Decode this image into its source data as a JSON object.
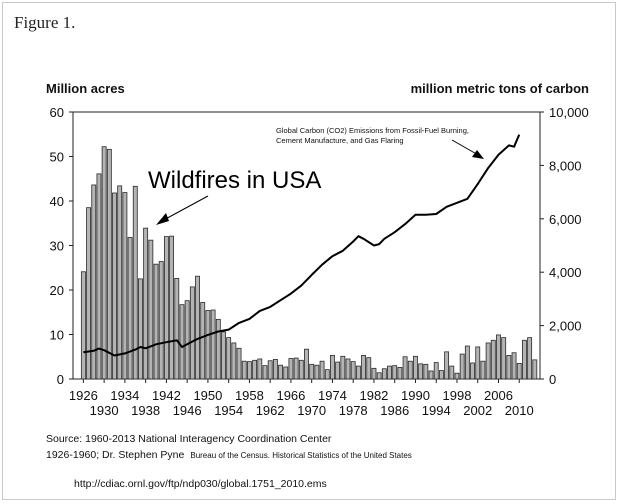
{
  "figure_label": "Figure 1.",
  "chart_data": {
    "type": "bar+line",
    "left_axis": {
      "label": "Million acres",
      "range": [
        0,
        60
      ],
      "ticks": [
        0,
        10,
        20,
        30,
        40,
        50,
        60
      ]
    },
    "right_axis": {
      "label": "million metric tons of carbon",
      "range": [
        0,
        10000
      ],
      "ticks": [
        "0",
        "2,000",
        "4,000",
        "6,000",
        "8,000",
        "10,000"
      ]
    },
    "x_ticks_top": [
      "1926",
      "1934",
      "1942",
      "1950",
      "1958",
      "1966",
      "1974",
      "1982",
      "1990",
      "1998",
      "2006"
    ],
    "x_ticks_bottom": [
      "1930",
      "1938",
      "1946",
      "1954",
      "1962",
      "1970",
      "1978",
      "1986",
      "1994",
      "2002",
      "2010"
    ],
    "bars": {
      "name": "Wildfires in USA",
      "years": [
        1926,
        1927,
        1928,
        1929,
        1930,
        1931,
        1932,
        1933,
        1934,
        1935,
        1936,
        1937,
        1938,
        1939,
        1940,
        1941,
        1942,
        1943,
        1944,
        1945,
        1946,
        1947,
        1948,
        1949,
        1950,
        1951,
        1952,
        1953,
        1954,
        1955,
        1956,
        1957,
        1958,
        1959,
        1960,
        1961,
        1962,
        1963,
        1964,
        1965,
        1966,
        1967,
        1968,
        1969,
        1970,
        1971,
        1972,
        1973,
        1974,
        1975,
        1976,
        1977,
        1978,
        1979,
        1980,
        1981,
        1982,
        1983,
        1984,
        1985,
        1986,
        1987,
        1988,
        1989,
        1990,
        1991,
        1992,
        1993,
        1994,
        1995,
        1996,
        1997,
        1998,
        1999,
        2000,
        2001,
        2002,
        2003,
        2004,
        2005,
        2006,
        2007,
        2008,
        2009,
        2010,
        2011,
        2012,
        2013
      ],
      "values": [
        24.1,
        38.5,
        43.6,
        46.1,
        52.2,
        51.6,
        41.8,
        43.4,
        41.9,
        31.8,
        43.3,
        22.5,
        33.9,
        31.2,
        25.8,
        26.4,
        32.0,
        32.1,
        22.6,
        16.7,
        17.6,
        20.7,
        23.1,
        17.2,
        15.4,
        15.5,
        13.4,
        10.6,
        9.3,
        8.1,
        6.9,
        4.0,
        3.9,
        4.2,
        4.5,
        3.0,
        4.1,
        4.4,
        3.1,
        2.7,
        4.6,
        4.7,
        4.2,
        6.7,
        3.3,
        3.1,
        4.0,
        2.1,
        5.3,
        3.8,
        5.1,
        4.5,
        3.9,
        2.9,
        5.3,
        4.8,
        2.4,
        1.4,
        2.3,
        2.9,
        3.0,
        2.6,
        5.0,
        4.0,
        5.1,
        3.4,
        3.3,
        1.8,
        3.7,
        1.9,
        6.1,
        2.9,
        1.3,
        5.6,
        7.4,
        3.6,
        7.2,
        4.0,
        8.1,
        8.7,
        9.9,
        9.3,
        5.3,
        5.9,
        3.5,
        8.7,
        9.3,
        4.3
      ]
    },
    "line": {
      "name": "Global Carbon (CO2) Emissions from Fossil-Fuel Burning, Cement Manufacture, and Gas Flaring",
      "years": [
        1926,
        1928,
        1929,
        1930,
        1932,
        1934,
        1936,
        1937,
        1938,
        1940,
        1942,
        1944,
        1945,
        1946,
        1948,
        1950,
        1952,
        1954,
        1956,
        1958,
        1960,
        1962,
        1964,
        1966,
        1968,
        1970,
        1972,
        1974,
        1976,
        1978,
        1979,
        1980,
        1982,
        1983,
        1984,
        1986,
        1988,
        1990,
        1992,
        1994,
        1996,
        1998,
        2000,
        2002,
        2004,
        2006,
        2008,
        2009,
        2010
      ],
      "values": [
        1000,
        1060,
        1140,
        1080,
        880,
        960,
        1100,
        1200,
        1150,
        1300,
        1380,
        1450,
        1200,
        1300,
        1500,
        1650,
        1780,
        1850,
        2100,
        2250,
        2550,
        2700,
        2950,
        3200,
        3500,
        3900,
        4280,
        4600,
        4800,
        5150,
        5350,
        5250,
        5000,
        5050,
        5250,
        5500,
        5800,
        6150,
        6150,
        6180,
        6450,
        6600,
        6750,
        7300,
        7900,
        8400,
        8750,
        8700,
        9150
      ]
    },
    "annotations": {
      "wildfires": "Wildfires in USA",
      "emissions_line1": "Global Carbon (CO2) Emissions from Fossil-Fuel Burning,",
      "emissions_line2": "Cement Manufacture, and Gas Flaring"
    }
  },
  "source": {
    "line1": "Source:  1960-2013 National Interagency Coordination Center",
    "line2": "1926-1960; Dr. Stephen Pyne",
    "line2_note": "Bureau of the Census. Historical Statistics of the United States",
    "url": "http://cdiac.ornl.gov/ftp/ndp030/global.1751_2010.ems"
  }
}
